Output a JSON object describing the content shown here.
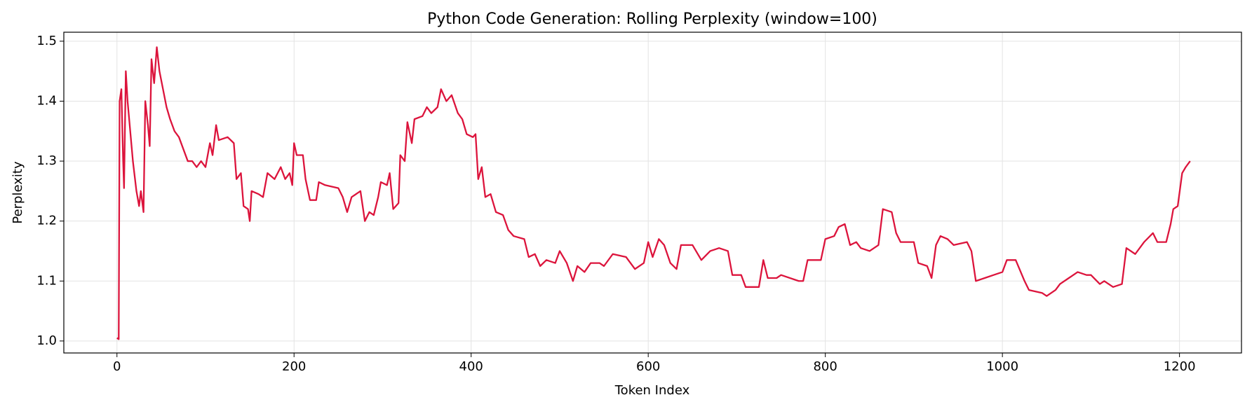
{
  "chart_data": {
    "type": "line",
    "title": "Python Code Generation: Rolling Perplexity (window=100)",
    "xlabel": "Token Index",
    "ylabel": "Perplexity",
    "color": "#dc143c",
    "grid": true,
    "xlim": [
      -60,
      1270
    ],
    "ylim": [
      0.98,
      1.515
    ],
    "xticks": [
      0,
      200,
      400,
      600,
      800,
      1000,
      1200
    ],
    "yticks": [
      {
        "value": 1,
        "label": "1.0"
      },
      1.1,
      1.2,
      1.3,
      1.4,
      1.5
    ],
    "x": [
      0,
      2,
      3,
      5,
      7,
      8,
      10,
      12,
      15,
      18,
      22,
      25,
      27,
      30,
      32,
      35,
      37,
      39,
      42,
      45,
      48,
      52,
      56,
      60,
      65,
      70,
      75,
      80,
      85,
      90,
      95,
      100,
      105,
      108,
      112,
      115,
      125,
      132,
      135,
      140,
      143,
      148,
      150,
      152,
      160,
      165,
      170,
      178,
      185,
      190,
      195,
      198,
      200,
      203,
      210,
      213,
      218,
      225,
      228,
      235,
      250,
      255,
      260,
      265,
      275,
      280,
      285,
      290,
      295,
      298,
      305,
      308,
      312,
      318,
      320,
      325,
      328,
      333,
      336,
      345,
      350,
      355,
      362,
      366,
      372,
      378,
      385,
      390,
      395,
      402,
      405,
      408,
      412,
      416,
      422,
      428,
      436,
      442,
      448,
      460,
      465,
      472,
      478,
      485,
      495,
      500,
      508,
      515,
      520,
      528,
      535,
      545,
      550,
      560,
      575,
      585,
      595,
      600,
      605,
      612,
      618,
      625,
      632,
      637,
      650,
      660,
      670,
      680,
      690,
      695,
      705,
      710,
      725,
      730,
      735,
      745,
      750,
      770,
      775,
      780,
      795,
      800,
      810,
      815,
      822,
      828,
      835,
      840,
      850,
      860,
      865,
      875,
      880,
      885,
      900,
      905,
      915,
      920,
      925,
      930,
      938,
      945,
      960,
      965,
      970,
      980,
      990,
      1000,
      1005,
      1015,
      1025,
      1030,
      1045,
      1050,
      1060,
      1065,
      1075,
      1085,
      1095,
      1100,
      1110,
      1115,
      1125,
      1135,
      1140,
      1150,
      1160,
      1170,
      1175,
      1185,
      1190,
      1193,
      1198,
      1203,
      1207,
      1212
    ],
    "values": [
      1.005,
      1.003,
      1.4,
      1.42,
      1.3,
      1.255,
      1.45,
      1.4,
      1.35,
      1.3,
      1.25,
      1.225,
      1.25,
      1.215,
      1.4,
      1.36,
      1.325,
      1.47,
      1.43,
      1.49,
      1.45,
      1.42,
      1.39,
      1.37,
      1.35,
      1.34,
      1.32,
      1.3,
      1.3,
      1.29,
      1.3,
      1.29,
      1.33,
      1.31,
      1.36,
      1.335,
      1.34,
      1.33,
      1.27,
      1.28,
      1.225,
      1.22,
      1.2,
      1.25,
      1.245,
      1.24,
      1.28,
      1.27,
      1.29,
      1.27,
      1.28,
      1.26,
      1.33,
      1.31,
      1.31,
      1.27,
      1.235,
      1.235,
      1.265,
      1.26,
      1.255,
      1.24,
      1.215,
      1.24,
      1.25,
      1.2,
      1.215,
      1.21,
      1.24,
      1.265,
      1.26,
      1.28,
      1.22,
      1.23,
      1.31,
      1.3,
      1.365,
      1.33,
      1.37,
      1.375,
      1.39,
      1.38,
      1.39,
      1.42,
      1.4,
      1.41,
      1.38,
      1.37,
      1.345,
      1.34,
      1.345,
      1.27,
      1.29,
      1.24,
      1.245,
      1.215,
      1.21,
      1.185,
      1.175,
      1.17,
      1.14,
      1.145,
      1.125,
      1.135,
      1.13,
      1.15,
      1.13,
      1.1,
      1.125,
      1.115,
      1.13,
      1.13,
      1.125,
      1.145,
      1.14,
      1.12,
      1.13,
      1.165,
      1.14,
      1.17,
      1.16,
      1.13,
      1.12,
      1.16,
      1.16,
      1.135,
      1.15,
      1.155,
      1.15,
      1.11,
      1.11,
      1.09,
      1.09,
      1.135,
      1.105,
      1.105,
      1.11,
      1.1,
      1.1,
      1.135,
      1.135,
      1.17,
      1.175,
      1.19,
      1.195,
      1.16,
      1.165,
      1.155,
      1.15,
      1.16,
      1.22,
      1.215,
      1.18,
      1.165,
      1.165,
      1.13,
      1.125,
      1.105,
      1.16,
      1.175,
      1.17,
      1.16,
      1.165,
      1.15,
      1.1,
      1.105,
      1.11,
      1.115,
      1.135,
      1.135,
      1.1,
      1.085,
      1.08,
      1.075,
      1.085,
      1.095,
      1.105,
      1.115,
      1.11,
      1.11,
      1.095,
      1.1,
      1.09,
      1.095,
      1.155,
      1.145,
      1.165,
      1.18,
      1.165,
      1.165,
      1.195,
      1.22,
      1.225,
      1.28,
      1.29,
      1.3
    ]
  }
}
